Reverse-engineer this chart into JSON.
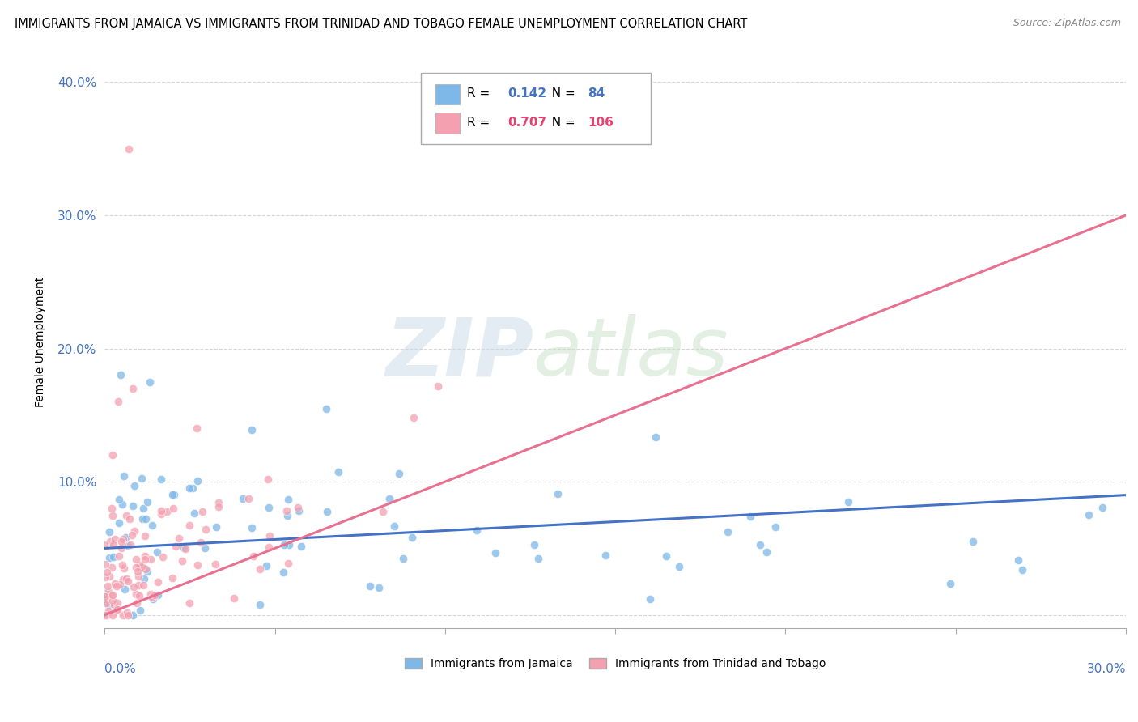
{
  "title": "IMMIGRANTS FROM JAMAICA VS IMMIGRANTS FROM TRINIDAD AND TOBAGO FEMALE UNEMPLOYMENT CORRELATION CHART",
  "source": "Source: ZipAtlas.com",
  "ylabel": "Female Unemployment",
  "yticks": [
    0.0,
    0.1,
    0.2,
    0.3,
    0.4
  ],
  "ytick_labels": [
    "",
    "10.0%",
    "20.0%",
    "30.0%",
    "40.0%"
  ],
  "xlim": [
    0.0,
    0.3
  ],
  "ylim": [
    -0.01,
    0.42
  ],
  "legend_jamaica": "Immigrants from Jamaica",
  "legend_trinidad": "Immigrants from Trinidad and Tobago",
  "R_jamaica": 0.142,
  "N_jamaica": 84,
  "R_trinidad": 0.707,
  "N_trinidad": 106,
  "color_jamaica": "#7eb8e8",
  "color_trinidad": "#f4a0b0",
  "line_color_jamaica": "#4472c4",
  "line_color_trinidad": "#e87090",
  "watermark_zip": "ZIP",
  "watermark_atlas": "atlas",
  "background_color": "#ffffff"
}
